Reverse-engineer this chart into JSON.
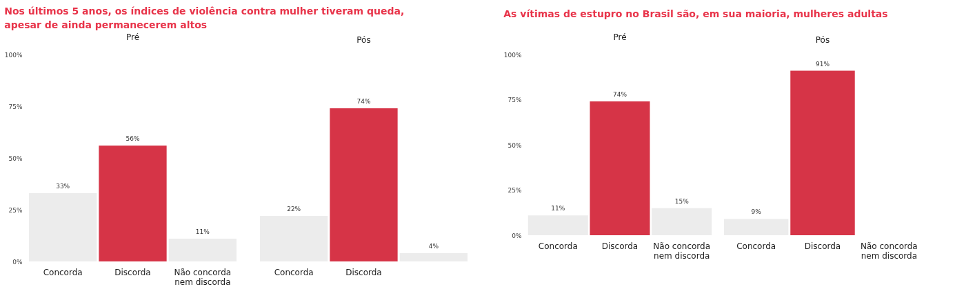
{
  "chart_data": [
    {
      "type": "bar",
      "title": "Nos últimos 5 anos, os índices de violência contra mulher tiveram queda, apesar de ainda permanecerem altos",
      "subtitle": "Pré",
      "categories": [
        "Concorda",
        "Discorda",
        "Não concorda nem discorda"
      ],
      "values": [
        33,
        56,
        11
      ],
      "colors": [
        "#ececec",
        "#d63447",
        "#ececec"
      ],
      "value_labels": [
        "33%",
        "56%",
        "11%"
      ],
      "ylim": [
        0,
        100
      ],
      "yticks": [
        {
          "value": 0,
          "label": "0%"
        },
        {
          "value": 25,
          "label": "25%"
        },
        {
          "value": 50,
          "label": "50%"
        },
        {
          "value": 75,
          "label": "75%"
        },
        {
          "value": 100,
          "label": "100%"
        }
      ]
    },
    {
      "type": "bar",
      "subtitle": "Pós",
      "categories": [
        "Concorda",
        "Discorda",
        null
      ],
      "values": [
        22,
        74,
        4
      ],
      "colors": [
        "#ececec",
        "#d63447",
        "#ececec"
      ],
      "value_labels": [
        "22%",
        "74%",
        "4%"
      ],
      "ylim": [
        0,
        100
      ],
      "tick_labels": "x"
    },
    {
      "type": "bar",
      "title": "As vítimas de estupro no Brasil são, em sua maioria, mulheres adultas",
      "subtitle": "Pré",
      "categories": [
        "Concorda",
        "Discorda",
        "Não concorda nem discorda"
      ],
      "values": [
        11,
        74,
        15
      ],
      "colors": [
        "#ececec",
        "#d63447",
        "#ececec"
      ],
      "value_labels": [
        "11%",
        "74%",
        "15%"
      ],
      "ylim": [
        0,
        100
      ],
      "yticks": [
        {
          "value": 0,
          "label": "0%"
        },
        {
          "value": 25,
          "label": "25%"
        },
        {
          "value": 50,
          "label": "50%"
        },
        {
          "value": 75,
          "label": "75%"
        },
        {
          "value": 100,
          "label": "100%"
        }
      ]
    },
    {
      "type": "bar",
      "subtitle": "Pós",
      "categories": [
        "Concorda",
        "Discorda",
        "Não concorda nem discorda"
      ],
      "values": [
        9,
        91,
        null
      ],
      "colors": [
        "#ececec",
        "#d63447",
        "#ececec"
      ],
      "value_labels": [
        "9%",
        "91%",
        null
      ],
      "ylim": [
        0,
        100
      ],
      "tick_labels": "x"
    }
  ]
}
